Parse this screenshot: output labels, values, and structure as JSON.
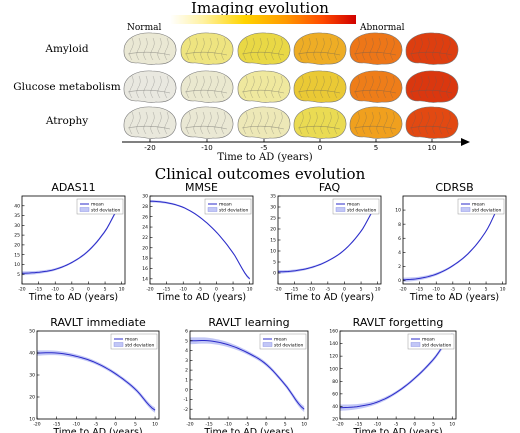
{
  "imaging": {
    "title": "Imaging evolution",
    "colorbar": {
      "low_label": "Normal",
      "high_label": "Abnormal"
    },
    "rows": [
      {
        "label": "Amyloid",
        "levels": [
          0.05,
          0.25,
          0.38,
          0.55,
          0.72,
          0.88
        ]
      },
      {
        "label": "Glucose metabolism",
        "levels": [
          0.02,
          0.06,
          0.18,
          0.45,
          0.7,
          0.9
        ]
      },
      {
        "label": "Atrophy",
        "levels": [
          0.03,
          0.05,
          0.12,
          0.35,
          0.6,
          0.85
        ]
      }
    ],
    "axis": {
      "ticks": [
        "-20",
        "-10",
        "-5",
        "0",
        "5",
        "10"
      ],
      "label": "Time to AD (years)"
    }
  },
  "clinical": {
    "title": "Clinical outcomes evolution"
  },
  "chart_data": [
    {
      "type": "line",
      "title": "ADAS11",
      "xlabel": "Time to AD (years)",
      "x": [
        -20,
        -15,
        -10,
        -5,
        0,
        5,
        10
      ],
      "mean": [
        5.5,
        6.0,
        7.5,
        11.0,
        17.0,
        27.0,
        41.0
      ],
      "std": [
        1.0,
        0.8,
        0.6,
        0.5,
        0.6,
        0.7,
        0.9
      ],
      "xlim": [
        -20,
        11
      ],
      "ylim": [
        0,
        45
      ],
      "xticks": [
        -20,
        -15,
        -10,
        -5,
        0,
        5,
        10
      ],
      "yticks": [
        5,
        10,
        15,
        20,
        25,
        30,
        35,
        40
      ],
      "legend": [
        "mean",
        "std deviation"
      ]
    },
    {
      "type": "line",
      "title": "MMSE",
      "xlabel": "Time to AD (years)",
      "x": [
        -20,
        -15,
        -10,
        -5,
        0,
        5,
        10
      ],
      "mean": [
        29.0,
        28.7,
        27.8,
        25.9,
        23.0,
        19.0,
        14.0
      ],
      "std": [
        0.25,
        0.2,
        0.15,
        0.15,
        0.15,
        0.2,
        0.25
      ],
      "xlim": [
        -20,
        11
      ],
      "ylim": [
        13,
        30
      ],
      "xticks": [
        -20,
        -15,
        -10,
        -5,
        0,
        5,
        10
      ],
      "yticks": [
        14,
        16,
        18,
        20,
        22,
        24,
        26,
        28,
        30
      ],
      "legend": [
        "mean",
        "std deviation"
      ]
    },
    {
      "type": "line",
      "title": "FAQ",
      "xlabel": "Time to AD (years)",
      "x": [
        -20,
        -15,
        -10,
        -5,
        0,
        5,
        10
      ],
      "mean": [
        0.5,
        1.0,
        2.5,
        5.5,
        10.5,
        19.0,
        31.0
      ],
      "std": [
        0.8,
        0.6,
        0.5,
        0.4,
        0.4,
        0.5,
        0.6
      ],
      "xlim": [
        -20,
        11
      ],
      "ylim": [
        -5,
        35
      ],
      "xticks": [
        -20,
        -15,
        -10,
        -5,
        0,
        5,
        10
      ],
      "yticks": [
        0,
        5,
        10,
        15,
        20,
        25,
        30,
        35
      ],
      "legend": [
        "mean",
        "std deviation"
      ]
    },
    {
      "type": "line",
      "title": "CDRSB",
      "xlabel": "Time to AD (years)",
      "x": [
        -20,
        -15,
        -10,
        -5,
        0,
        5,
        10
      ],
      "mean": [
        0.1,
        0.3,
        0.9,
        2.1,
        4.0,
        7.0,
        11.3
      ],
      "std": [
        0.3,
        0.25,
        0.2,
        0.15,
        0.15,
        0.15,
        0.2
      ],
      "xlim": [
        -20,
        11
      ],
      "ylim": [
        -0.5,
        12
      ],
      "xticks": [
        -20,
        -15,
        -10,
        -5,
        0,
        5,
        10
      ],
      "yticks": [
        0,
        2,
        4,
        6,
        8,
        10
      ],
      "legend": [
        "mean",
        "std deviation"
      ]
    },
    {
      "type": "line",
      "title": "RAVLT immediate",
      "xlabel": "Time to AD (years)",
      "x": [
        -20,
        -15,
        -10,
        -5,
        0,
        5,
        10
      ],
      "mean": [
        40.0,
        40.0,
        38.5,
        35.5,
        30.5,
        23.5,
        14.0
      ],
      "std": [
        1.2,
        1.0,
        0.9,
        0.8,
        0.8,
        0.9,
        1.2
      ],
      "xlim": [
        -20,
        11
      ],
      "ylim": [
        10,
        50
      ],
      "xticks": [
        -20,
        -15,
        -10,
        -5,
        0,
        5,
        10
      ],
      "yticks": [
        10,
        20,
        30,
        40,
        50
      ],
      "legend": [
        "mean",
        "std deviation"
      ]
    },
    {
      "type": "line",
      "title": "RAVLT learning",
      "xlabel": "Time to AD (years)",
      "x": [
        -20,
        -15,
        -10,
        -5,
        0,
        5,
        10
      ],
      "mean": [
        5.0,
        5.0,
        4.6,
        3.8,
        2.6,
        0.5,
        -2.0
      ],
      "std": [
        0.35,
        0.3,
        0.25,
        0.2,
        0.2,
        0.2,
        0.3
      ],
      "xlim": [
        -20,
        11
      ],
      "ylim": [
        -3,
        6
      ],
      "xticks": [
        -20,
        -15,
        -10,
        -5,
        0,
        5,
        10
      ],
      "yticks": [
        -2,
        -1,
        0,
        1,
        2,
        3,
        4,
        5,
        6
      ],
      "legend": [
        "mean",
        "std deviation"
      ]
    },
    {
      "type": "line",
      "title": "RAVLT forgetting",
      "xlabel": "Time to AD (years)",
      "x": [
        -20,
        -15,
        -10,
        -5,
        0,
        5,
        10
      ],
      "mean": [
        38.0,
        40.0,
        47.0,
        62.0,
        85.0,
        115.0,
        153.0
      ],
      "std": [
        5.0,
        4.0,
        3.0,
        2.5,
        2.5,
        3.0,
        4.0
      ],
      "xlim": [
        -20,
        11
      ],
      "ylim": [
        20,
        160
      ],
      "xticks": [
        -20,
        -15,
        -10,
        -5,
        0,
        5,
        10
      ],
      "yticks": [
        20,
        40,
        60,
        80,
        100,
        120,
        140,
        160
      ],
      "legend": [
        "mean",
        "std deviation"
      ]
    }
  ]
}
